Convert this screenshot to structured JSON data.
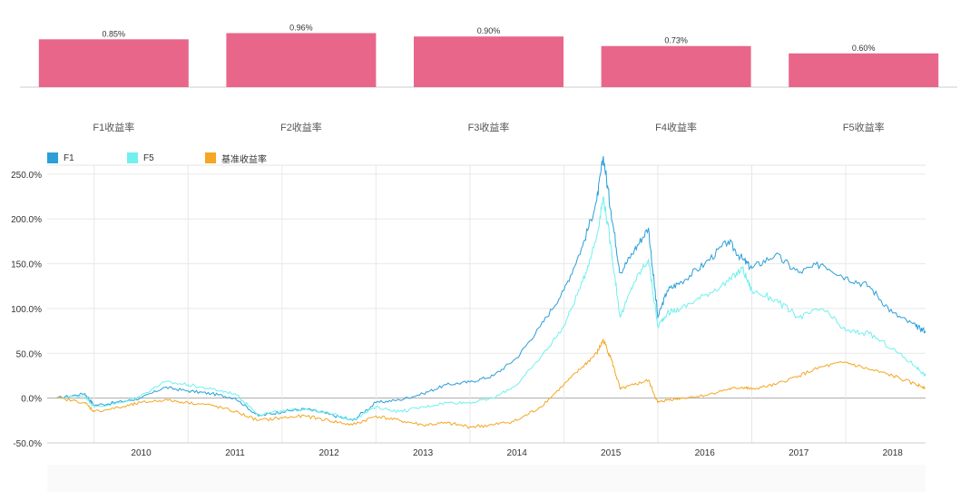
{
  "chart_data": [
    {
      "type": "bar",
      "categories": [
        "F1收益率",
        "F2收益率",
        "F3收益率",
        "F4收益率",
        "F5收益率"
      ],
      "values": [
        0.85,
        0.96,
        0.9,
        0.73,
        0.6
      ],
      "value_labels": [
        "0.85%",
        "0.96%",
        "0.90%",
        "0.73%",
        "0.60%"
      ],
      "bar_color": "#e8668a",
      "ylim": [
        0,
        1.0
      ],
      "grid": false
    },
    {
      "type": "line",
      "series": [
        {
          "name": "F1",
          "color": "#2a9fd8",
          "points": [
            [
              2009.6,
              0
            ],
            [
              2009.9,
              5
            ],
            [
              2010.0,
              -8
            ],
            [
              2010.3,
              -4
            ],
            [
              2010.5,
              0
            ],
            [
              2010.75,
              12
            ],
            [
              2011.0,
              8
            ],
            [
              2011.25,
              5
            ],
            [
              2011.5,
              0
            ],
            [
              2011.75,
              -20
            ],
            [
              2012.0,
              -15
            ],
            [
              2012.25,
              -12
            ],
            [
              2012.5,
              -18
            ],
            [
              2012.75,
              -25
            ],
            [
              2013.0,
              -5
            ],
            [
              2013.25,
              -2
            ],
            [
              2013.5,
              5
            ],
            [
              2013.75,
              15
            ],
            [
              2014.0,
              18
            ],
            [
              2014.25,
              25
            ],
            [
              2014.5,
              45
            ],
            [
              2014.75,
              80
            ],
            [
              2015.0,
              120
            ],
            [
              2015.2,
              170
            ],
            [
              2015.35,
              220
            ],
            [
              2015.42,
              270
            ],
            [
              2015.5,
              210
            ],
            [
              2015.6,
              140
            ],
            [
              2015.75,
              165
            ],
            [
              2015.9,
              190
            ],
            [
              2016.0,
              90
            ],
            [
              2016.1,
              120
            ],
            [
              2016.25,
              130
            ],
            [
              2016.5,
              150
            ],
            [
              2016.75,
              175
            ],
            [
              2016.9,
              155
            ],
            [
              2017.0,
              145
            ],
            [
              2017.25,
              160
            ],
            [
              2017.5,
              140
            ],
            [
              2017.75,
              150
            ],
            [
              2018.0,
              135
            ],
            [
              2018.25,
              125
            ],
            [
              2018.5,
              95
            ],
            [
              2018.75,
              80
            ],
            [
              2018.85,
              75
            ]
          ]
        },
        {
          "name": "F5",
          "color": "#70f0ee",
          "points": [
            [
              2009.6,
              0
            ],
            [
              2009.9,
              3
            ],
            [
              2010.0,
              -10
            ],
            [
              2010.3,
              -5
            ],
            [
              2010.5,
              3
            ],
            [
              2010.75,
              18
            ],
            [
              2011.0,
              15
            ],
            [
              2011.25,
              10
            ],
            [
              2011.5,
              5
            ],
            [
              2011.75,
              -18
            ],
            [
              2012.0,
              -15
            ],
            [
              2012.25,
              -12
            ],
            [
              2012.5,
              -17
            ],
            [
              2012.75,
              -24
            ],
            [
              2013.0,
              -10
            ],
            [
              2013.25,
              -15
            ],
            [
              2013.5,
              -10
            ],
            [
              2013.75,
              -5
            ],
            [
              2014.0,
              -5
            ],
            [
              2014.25,
              0
            ],
            [
              2014.5,
              15
            ],
            [
              2014.75,
              45
            ],
            [
              2015.0,
              80
            ],
            [
              2015.2,
              130
            ],
            [
              2015.35,
              180
            ],
            [
              2015.42,
              225
            ],
            [
              2015.5,
              170
            ],
            [
              2015.6,
              90
            ],
            [
              2015.75,
              130
            ],
            [
              2015.9,
              155
            ],
            [
              2016.0,
              80
            ],
            [
              2016.1,
              95
            ],
            [
              2016.25,
              100
            ],
            [
              2016.5,
              115
            ],
            [
              2016.75,
              130
            ],
            [
              2016.9,
              145
            ],
            [
              2017.0,
              120
            ],
            [
              2017.25,
              110
            ],
            [
              2017.5,
              90
            ],
            [
              2017.75,
              100
            ],
            [
              2018.0,
              75
            ],
            [
              2018.25,
              72
            ],
            [
              2018.5,
              55
            ],
            [
              2018.75,
              35
            ],
            [
              2018.85,
              25
            ]
          ]
        },
        {
          "name": "基准收益率",
          "color": "#f5a623",
          "points": [
            [
              2009.6,
              0
            ],
            [
              2009.9,
              -5
            ],
            [
              2010.0,
              -15
            ],
            [
              2010.3,
              -10
            ],
            [
              2010.5,
              -5
            ],
            [
              2010.75,
              -2
            ],
            [
              2011.0,
              -5
            ],
            [
              2011.25,
              -8
            ],
            [
              2011.5,
              -15
            ],
            [
              2011.75,
              -25
            ],
            [
              2012.0,
              -22
            ],
            [
              2012.25,
              -20
            ],
            [
              2012.5,
              -25
            ],
            [
              2012.75,
              -30
            ],
            [
              2013.0,
              -20
            ],
            [
              2013.25,
              -25
            ],
            [
              2013.5,
              -30
            ],
            [
              2013.75,
              -28
            ],
            [
              2014.0,
              -32
            ],
            [
              2014.25,
              -30
            ],
            [
              2014.5,
              -25
            ],
            [
              2014.75,
              -10
            ],
            [
              2015.0,
              15
            ],
            [
              2015.2,
              35
            ],
            [
              2015.35,
              50
            ],
            [
              2015.42,
              65
            ],
            [
              2015.5,
              45
            ],
            [
              2015.6,
              10
            ],
            [
              2015.75,
              15
            ],
            [
              2015.9,
              20
            ],
            [
              2016.0,
              -5
            ],
            [
              2016.1,
              -2
            ],
            [
              2016.25,
              0
            ],
            [
              2016.5,
              3
            ],
            [
              2016.75,
              10
            ],
            [
              2016.9,
              12
            ],
            [
              2017.0,
              10
            ],
            [
              2017.25,
              15
            ],
            [
              2017.5,
              25
            ],
            [
              2017.75,
              35
            ],
            [
              2018.0,
              40
            ],
            [
              2018.25,
              32
            ],
            [
              2018.5,
              25
            ],
            [
              2018.75,
              15
            ],
            [
              2018.85,
              12
            ]
          ]
        }
      ],
      "x_ticks": [
        "2010",
        "2011",
        "2012",
        "2013",
        "2014",
        "2015",
        "2016",
        "2017",
        "2018"
      ],
      "y_ticks": [
        "-50.0%",
        "0.0%",
        "50.0%",
        "100.0%",
        "150.0%",
        "200.0%",
        "250.0%"
      ],
      "ylim": [
        -50,
        260
      ],
      "xlim": [
        2009.5,
        2018.85
      ],
      "grid": true,
      "legend_position": "top-left"
    }
  ]
}
